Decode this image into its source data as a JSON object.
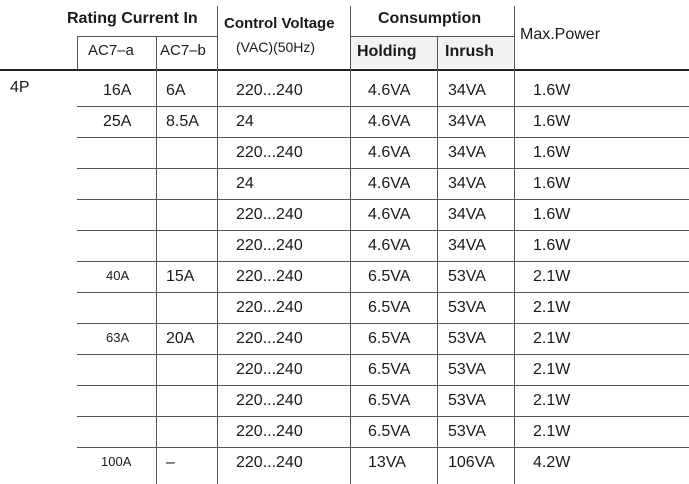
{
  "header": {
    "rating_current": "Rating Current In",
    "ac7a": "AC7–a",
    "ac7b": "AC7–b",
    "control_voltage": "Control Voltage",
    "control_voltage_unit": "(VAC)(50Hz)",
    "consumption": "Consumption",
    "holding": "Holding",
    "inrush": "Inrush",
    "max_power": "Max.Power"
  },
  "pole": "4P",
  "rows": [
    {
      "ac7a": "16A",
      "ac7b": "6A",
      "voltage": "220...240",
      "holding": "4.6VA",
      "inrush": "34VA",
      "power": "1.6W"
    },
    {
      "ac7a": "25A",
      "ac7b": "8.5A",
      "voltage": "24",
      "holding": "4.6VA",
      "inrush": "34VA",
      "power": "1.6W"
    },
    {
      "ac7a": "",
      "ac7b": "",
      "voltage": "220...240",
      "holding": "4.6VA",
      "inrush": "34VA",
      "power": "1.6W"
    },
    {
      "ac7a": "",
      "ac7b": "",
      "voltage": "24",
      "holding": "4.6VA",
      "inrush": "34VA",
      "power": "1.6W"
    },
    {
      "ac7a": "",
      "ac7b": "",
      "voltage": "220...240",
      "holding": "4.6VA",
      "inrush": "34VA",
      "power": "1.6W"
    },
    {
      "ac7a": "",
      "ac7b": "",
      "voltage": "220...240",
      "holding": "4.6VA",
      "inrush": "34VA",
      "power": "1.6W"
    },
    {
      "ac7a": "40A",
      "ac7b": "15A",
      "voltage": "220...240",
      "holding": "6.5VA",
      "inrush": "53VA",
      "power": "2.1W"
    },
    {
      "ac7a": "",
      "ac7b": "",
      "voltage": "220...240",
      "holding": "6.5VA",
      "inrush": "53VA",
      "power": "2.1W"
    },
    {
      "ac7a": "63A",
      "ac7b": "20A",
      "voltage": "220...240",
      "holding": "6.5VA",
      "inrush": "53VA",
      "power": "2.1W"
    },
    {
      "ac7a": "",
      "ac7b": "",
      "voltage": "220...240",
      "holding": "6.5VA",
      "inrush": "53VA",
      "power": "2.1W"
    },
    {
      "ac7a": "",
      "ac7b": "",
      "voltage": "220...240",
      "holding": "6.5VA",
      "inrush": "53VA",
      "power": "2.1W"
    },
    {
      "ac7a": "",
      "ac7b": "",
      "voltage": "220...240",
      "holding": "6.5VA",
      "inrush": "53VA",
      "power": "2.1W"
    },
    {
      "ac7a": "100A",
      "ac7b": "–",
      "voltage": "220...240",
      "holding": "13VA",
      "inrush": "106VA",
      "power": "4.2W"
    }
  ]
}
